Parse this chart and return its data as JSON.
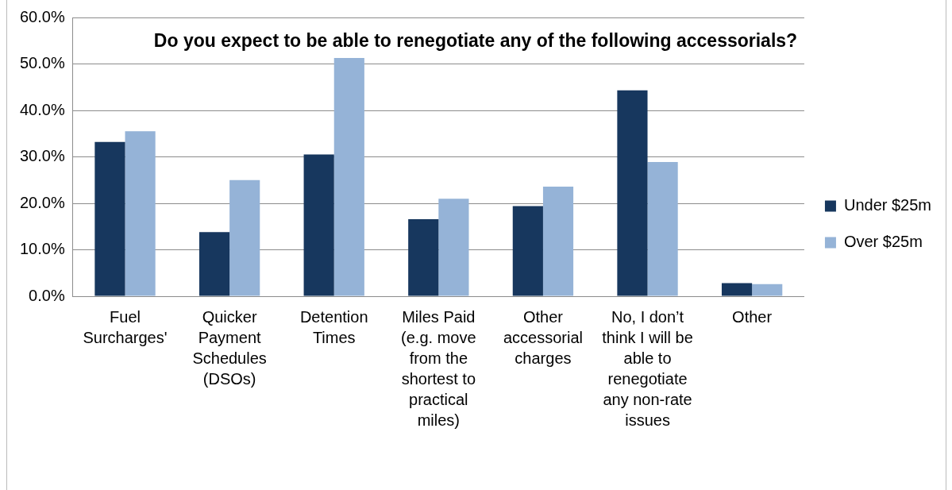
{
  "chart_data": {
    "type": "bar",
    "title": "Do you expect to be able to renegotiate any of the following accessorials?",
    "categories": [
      "Fuel Surcharges'",
      "Quicker Payment Schedules (DSOs)",
      "Detention Times",
      "Miles Paid (e.g. move from the shortest to practical miles)",
      "Other accessorial charges",
      "No, I don’t think I will be able to renegotiate any non-rate issues",
      "Other"
    ],
    "series": [
      {
        "name": "Under $25m",
        "color": "#17375e",
        "values": [
          33.2,
          13.8,
          30.5,
          16.6,
          19.4,
          44.3,
          2.8
        ]
      },
      {
        "name": "Over $25m",
        "color": "#95b3d7",
        "values": [
          35.5,
          25.0,
          51.3,
          21.0,
          23.6,
          28.9,
          2.6
        ]
      }
    ],
    "ylim": [
      0,
      60
    ],
    "yticks": [
      {
        "value": 0,
        "label": "0.0%"
      },
      {
        "value": 10,
        "label": "10.0%"
      },
      {
        "value": 20,
        "label": "20.0%"
      },
      {
        "value": 30,
        "label": "30.0%"
      },
      {
        "value": 40,
        "label": "40.0%"
      },
      {
        "value": 50,
        "label": "50.0%"
      },
      {
        "value": 60,
        "label": "60.0%"
      }
    ],
    "grid": "y",
    "legend": "right"
  }
}
